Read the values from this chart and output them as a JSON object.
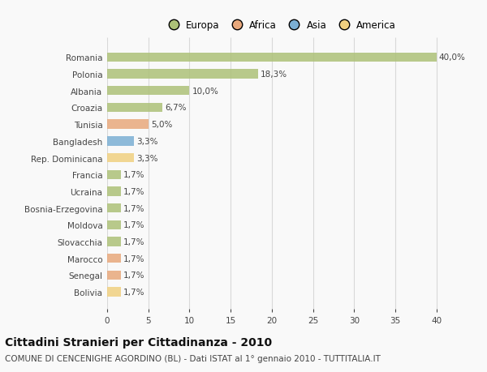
{
  "countries": [
    "Romania",
    "Polonia",
    "Albania",
    "Croazia",
    "Tunisia",
    "Bangladesh",
    "Rep. Dominicana",
    "Francia",
    "Ucraina",
    "Bosnia-Erzegovina",
    "Moldova",
    "Slovacchia",
    "Marocco",
    "Senegal",
    "Bolivia"
  ],
  "values": [
    40.0,
    18.3,
    10.0,
    6.7,
    5.0,
    3.3,
    3.3,
    1.7,
    1.7,
    1.7,
    1.7,
    1.7,
    1.7,
    1.7,
    1.7
  ],
  "labels": [
    "40,0%",
    "18,3%",
    "10,0%",
    "6,7%",
    "5,0%",
    "3,3%",
    "3,3%",
    "1,7%",
    "1,7%",
    "1,7%",
    "1,7%",
    "1,7%",
    "1,7%",
    "1,7%",
    "1,7%"
  ],
  "colors": [
    "#adc178",
    "#adc178",
    "#adc178",
    "#adc178",
    "#e8a87c",
    "#7bafd4",
    "#f0d080",
    "#adc178",
    "#adc178",
    "#adc178",
    "#adc178",
    "#adc178",
    "#e8a87c",
    "#e8a87c",
    "#f0d080"
  ],
  "legend_labels": [
    "Europa",
    "Africa",
    "Asia",
    "America"
  ],
  "legend_colors": [
    "#adc178",
    "#e8a87c",
    "#7bafd4",
    "#f0d080"
  ],
  "title": "Cittadini Stranieri per Cittadinanza - 2010",
  "subtitle": "COMUNE DI CENCENIGHE AGORDINO (BL) - Dati ISTAT al 1° gennaio 2010 - TUTTITALIA.IT",
  "xlim": [
    0,
    42
  ],
  "xticks": [
    0,
    5,
    10,
    15,
    20,
    25,
    30,
    35,
    40
  ],
  "background_color": "#f9f9f9",
  "grid_color": "#d8d8d8",
  "bar_height": 0.55,
  "title_fontsize": 10,
  "subtitle_fontsize": 7.5,
  "tick_fontsize": 7.5,
  "label_fontsize": 7.5,
  "legend_fontsize": 8.5
}
